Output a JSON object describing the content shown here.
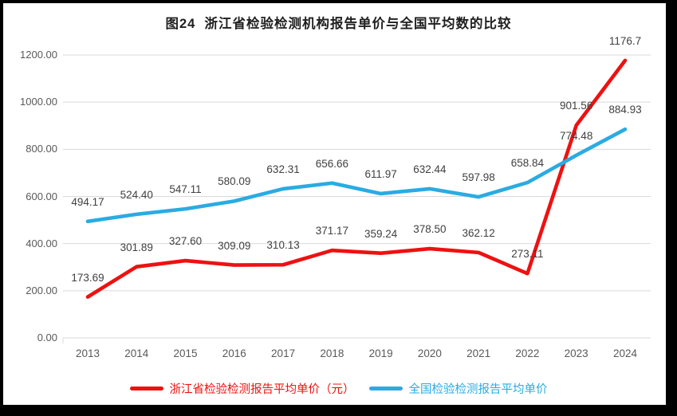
{
  "figure": {
    "title": "图24  浙江省检验检测机构报告单价与全国平均数的比较"
  },
  "chart_data": {
    "type": "line",
    "title": "图24  浙江省检验检测机构报告单价与全国平均数的比较",
    "categories": [
      "2013",
      "2014",
      "2015",
      "2016",
      "2017",
      "2018",
      "2019",
      "2020",
      "2021",
      "2022",
      "2023",
      "2024"
    ],
    "series": [
      {
        "name": "浙江省检验检测报告平均单价（元）",
        "color": "#ee1111",
        "values": [
          173.69,
          301.89,
          327.6,
          309.09,
          310.13,
          371.17,
          359.24,
          378.5,
          362.12,
          273.11,
          901.56,
          1176.7
        ],
        "labels": [
          "173.69",
          "301.89",
          "327.60",
          "309.09",
          "310.13",
          "371.17",
          "359.24",
          "378.50",
          "362.12",
          "273.11",
          "901.56",
          "1176.7"
        ]
      },
      {
        "name": "全国检验检测报告平均单价",
        "color": "#2aabe2",
        "values": [
          494.17,
          524.4,
          547.11,
          580.09,
          632.31,
          656.66,
          611.97,
          632.44,
          597.98,
          658.84,
          774.48,
          884.93
        ],
        "labels": [
          "494.17",
          "524.40",
          "547.11",
          "580.09",
          "632.31",
          "656.66",
          "611.97",
          "632.44",
          "597.98",
          "658.84",
          "774.48",
          "884.93"
        ]
      }
    ],
    "xlabel": "",
    "ylabel": "",
    "ylim": [
      0,
      1200
    ],
    "y_tick_step": 200,
    "y_ticks": [
      "0.00",
      "200.00",
      "400.00",
      "600.00",
      "800.00",
      "1000.00",
      "1200.00"
    ],
    "grid": "horizontal",
    "legend_position": "bottom",
    "grid_color": "#d9d9d9",
    "label_color": "#404040",
    "axis_label_color": "#595959"
  }
}
